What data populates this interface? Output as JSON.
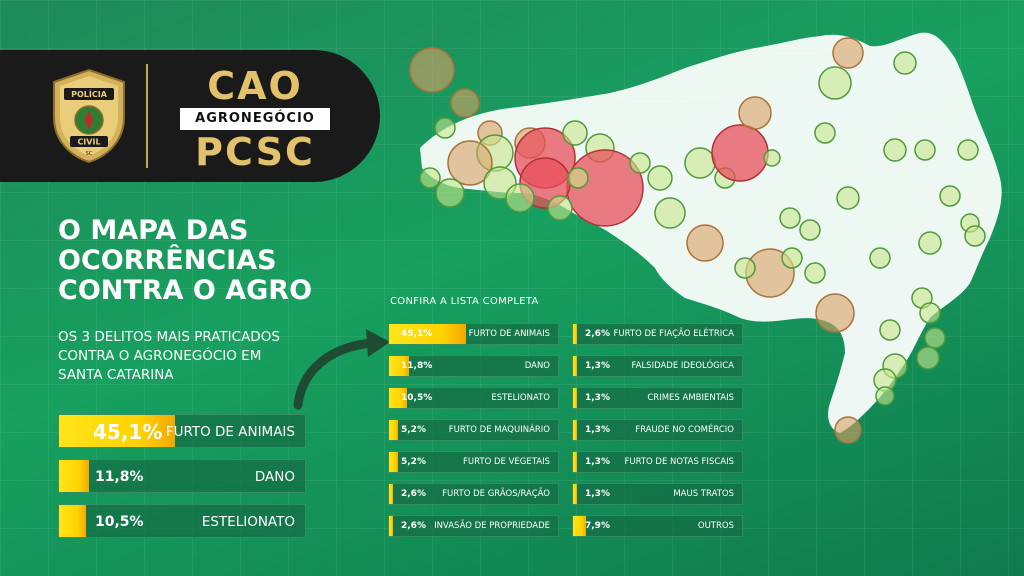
{
  "header": {
    "badge_top": "POLÍCIA",
    "badge_bottom": "CIVIL",
    "badge_state": "SC",
    "brand_top": "CAO",
    "brand_mid": "AGRONEGÓCIO",
    "brand_bottom": "PCSC",
    "accent_color": "#e2c26a"
  },
  "headline": {
    "line1": "O MAPA DAS",
    "line2": "OCORRÊNCIAS",
    "line3": "CONTRA O AGRO"
  },
  "subline": {
    "line1": "OS 3 DELITOS MAIS PRATICADOS",
    "line2": "CONTRA O AGRONEGÓCIO EM",
    "line3": "SANTA CATARINA"
  },
  "top3": [
    {
      "pct": "45,1%",
      "label": "FURTO DE ANIMAIS",
      "value": 45.1
    },
    {
      "pct": "11,8%",
      "label": "DANO",
      "value": 11.8
    },
    {
      "pct": "10,5%",
      "label": "ESTELIONATO",
      "value": 10.5
    }
  ],
  "list": {
    "title": "CONFIRA A LISTA COMPLETA",
    "left": [
      {
        "pct": "45,1%",
        "label": "FURTO DE ANIMAIS",
        "value": 45.1
      },
      {
        "pct": "11,8%",
        "label": "DANO",
        "value": 11.8
      },
      {
        "pct": "10,5%",
        "label": "ESTELIONATO",
        "value": 10.5
      },
      {
        "pct": "5,2%",
        "label": "FURTO DE MAQUINÁRIO",
        "value": 5.2
      },
      {
        "pct": "5,2%",
        "label": "FURTO DE VEGETAIS",
        "value": 5.2
      },
      {
        "pct": "2,6%",
        "label": "FURTO DE GRÃOS/RAÇÃO",
        "value": 2.6
      },
      {
        "pct": "2,6%",
        "label": "INVASÃO DE PROPRIEDADE",
        "value": 2.6
      }
    ],
    "right": [
      {
        "pct": "2,6%",
        "label": "FURTO DE FIAÇÃO ELÉTRICA",
        "value": 2.6
      },
      {
        "pct": "1,3%",
        "label": "FALSIDADE IDEOLÓGICA",
        "value": 1.3
      },
      {
        "pct": "1,3%",
        "label": "CRIMES AMBIENTAIS",
        "value": 1.3
      },
      {
        "pct": "1,3%",
        "label": "FRAUDE NO COMÉRCIO",
        "value": 1.3
      },
      {
        "pct": "1,3%",
        "label": "FURTO DE NOTAS FISCAIS",
        "value": 1.3
      },
      {
        "pct": "1,3%",
        "label": "MAUS TRATOS",
        "value": 1.3
      },
      {
        "pct": "7,9%",
        "label": "OUTROS",
        "value": 7.9
      }
    ]
  },
  "colors": {
    "bar_fill": "#ffd200",
    "bubble_high": "#e8505b",
    "bubble_mid": "#d9a066",
    "bubble_low": "#c8e68c"
  }
}
